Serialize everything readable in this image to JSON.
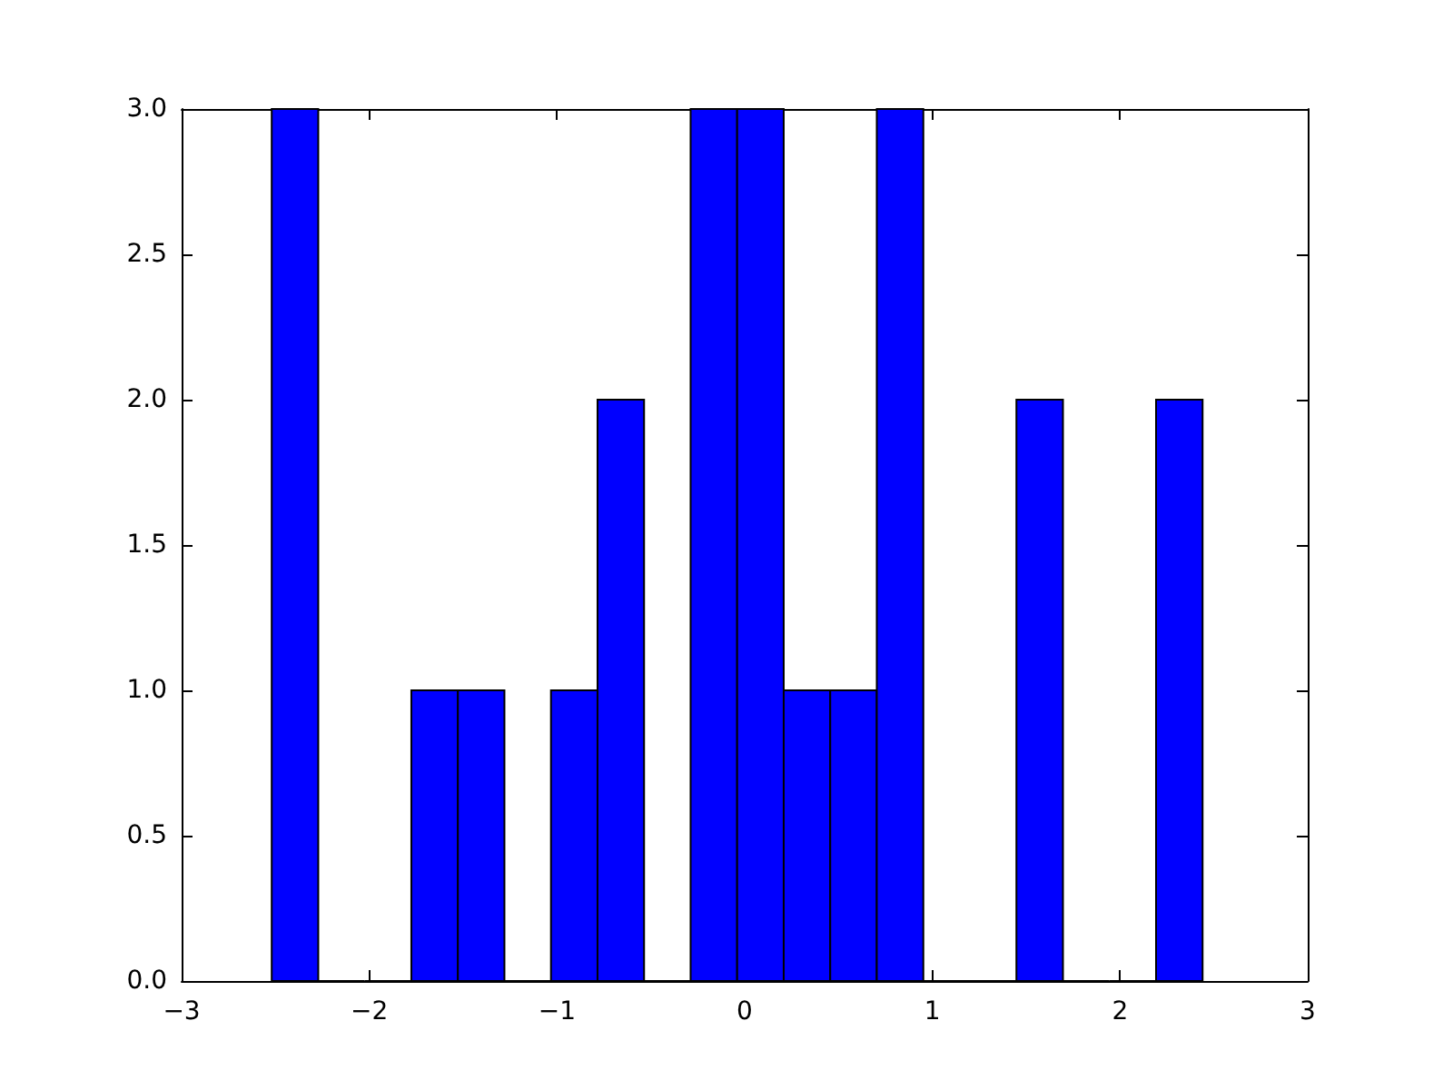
{
  "chart_data": {
    "type": "histogram",
    "color": "#0000ff",
    "bins": [
      -2.52,
      -2.272,
      -2.024,
      -1.776,
      -1.528,
      -1.28,
      -1.032,
      -0.784,
      -0.536,
      -0.288,
      -0.04,
      0.208,
      0.456,
      0.704,
      0.952,
      1.2,
      1.448,
      1.696,
      1.944,
      2.192,
      2.44
    ],
    "values": [
      3,
      0,
      0,
      1,
      1,
      0,
      1,
      2,
      0,
      3,
      3,
      1,
      1,
      3,
      0,
      0,
      2,
      0,
      0,
      2
    ],
    "xlim": [
      -3,
      3
    ],
    "xticks": [
      -3,
      -2,
      -1,
      0,
      1,
      2,
      3
    ],
    "ylim": [
      0,
      3
    ],
    "yticks": [
      {
        "value": 0,
        "label": "0.0"
      },
      0.5,
      {
        "value": 1,
        "label": "1.0"
      },
      1.5,
      {
        "value": 2,
        "label": "2.0"
      },
      2.5,
      {
        "value": 3,
        "label": "3.0"
      }
    ],
    "grid": false
  }
}
